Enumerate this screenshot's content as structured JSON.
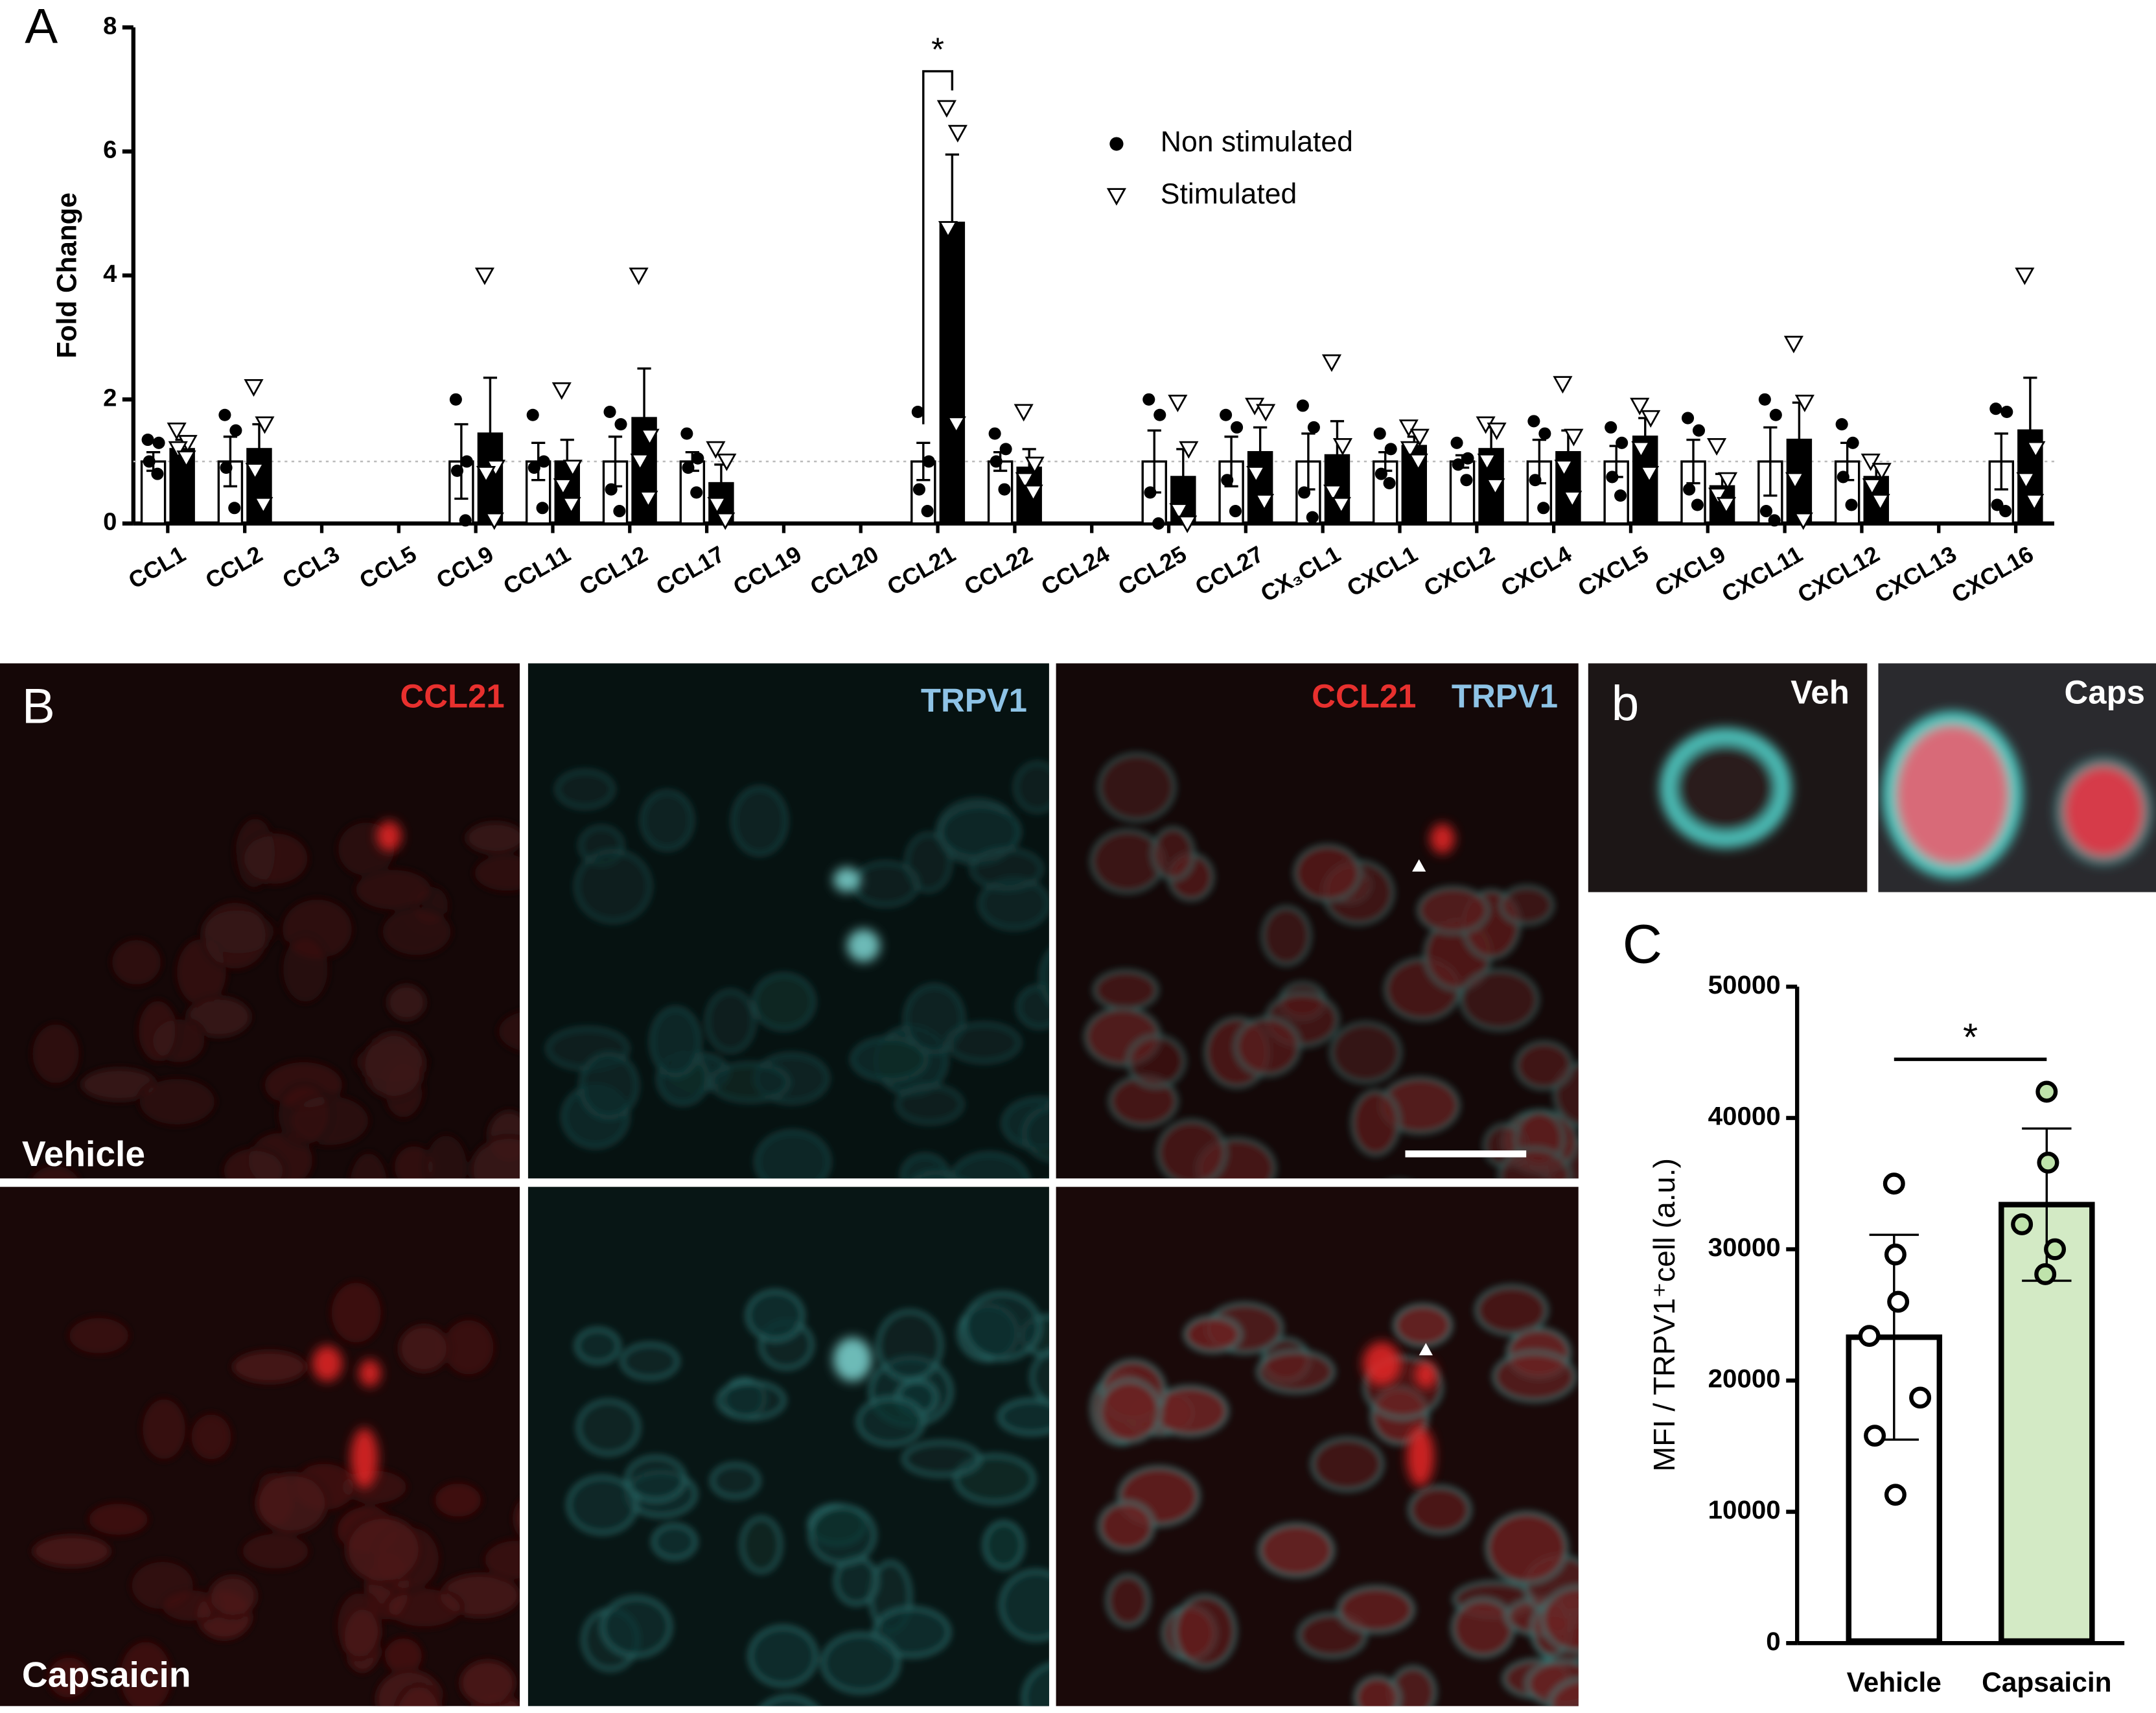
{
  "figure": {
    "panel_labels": {
      "a": "A",
      "b": "B",
      "b_inset": "b",
      "c": "C"
    },
    "image_labels": {
      "channel_red": "CCL21",
      "channel_cyan": "TRPV1",
      "merged_red": "CCL21",
      "merged_cyan": "TRPV1",
      "row_top": "Vehicle",
      "row_bottom": "Capsaicin",
      "inset_left": "Veh",
      "inset_right": "Caps"
    }
  },
  "chart_data": [
    {
      "type": "bar",
      "y_label": "Fold Change",
      "categories": [
        "CCL1",
        "CCL2",
        "CCL3",
        "CCL5",
        "CCL9",
        "CCL11",
        "CCL12",
        "CCL17",
        "CCL19",
        "CCL20",
        "CCL21",
        "CCL22",
        "CCL24",
        "CCL25",
        "CCL27",
        "CX₃CL1",
        "CXCL1",
        "CXCL2",
        "CXCL4",
        "CXCL5",
        "CXCL9",
        "CXCL11",
        "CXCL12",
        "CXCL13",
        "CXCL16"
      ],
      "ylim": [
        0,
        8
      ],
      "yticks": [
        0,
        2,
        4,
        6,
        8
      ],
      "reference_line": 1,
      "annotation": "*",
      "legend": "upper-center",
      "series": [
        {
          "name": "Non stimulated",
          "color": "#ffffff",
          "marker": "circle",
          "point_color": "#000000",
          "values": [
            1,
            1,
            null,
            null,
            1,
            1,
            1,
            1,
            null,
            null,
            1,
            1,
            null,
            1,
            1,
            1,
            1,
            1,
            1,
            1,
            1,
            1,
            1,
            null,
            1
          ],
          "errors": [
            0.15,
            0.4,
            null,
            null,
            0.6,
            0.3,
            0.4,
            0.15,
            null,
            null,
            0.3,
            0.15,
            null,
            0.5,
            0.4,
            0.45,
            0.15,
            0.1,
            0.35,
            0.25,
            0.35,
            0.55,
            0.3,
            null,
            0.45
          ],
          "points": [
            [
              1.35,
              1.3,
              1.0,
              0.8
            ],
            [
              1.75,
              1.5,
              0.9,
              0.25
            ],
            null,
            null,
            [
              2.0,
              1.0,
              0.85,
              0.05
            ],
            [
              1.75,
              1.0,
              0.9,
              0.25
            ],
            [
              1.8,
              1.6,
              0.55,
              0.2
            ],
            [
              1.45,
              1.05,
              0.9,
              0.5
            ],
            null,
            null,
            [
              1.8,
              1.0,
              0.55,
              0.2
            ],
            [
              1.45,
              1.2,
              1.0,
              0.55
            ],
            null,
            [
              2.0,
              1.75,
              0.5,
              0.0
            ],
            [
              1.75,
              1.55,
              0.7,
              0.2
            ],
            [
              1.9,
              1.55,
              0.5,
              0.1
            ],
            [
              1.45,
              1.2,
              0.8,
              0.65
            ],
            [
              1.3,
              1.05,
              0.95,
              0.7
            ],
            [
              1.65,
              1.45,
              0.7,
              0.25
            ],
            [
              1.55,
              1.3,
              0.75,
              0.45
            ],
            [
              1.7,
              1.5,
              0.55,
              0.3
            ],
            [
              2.0,
              1.75,
              0.2,
              0.05
            ],
            [
              1.6,
              1.3,
              0.75,
              0.3
            ],
            null,
            [
              1.85,
              1.8,
              0.3,
              0.2
            ]
          ]
        },
        {
          "name": "Stimulated",
          "color": "#000000",
          "marker": "triangle",
          "point_color": "#ffffff",
          "values": [
            1.2,
            1.2,
            null,
            null,
            1.45,
            1.0,
            1.7,
            0.65,
            null,
            null,
            4.85,
            0.9,
            null,
            0.75,
            1.15,
            1.1,
            1.25,
            1.2,
            1.15,
            1.4,
            0.6,
            1.35,
            0.75,
            null,
            1.5
          ],
          "errors": [
            0.15,
            0.4,
            null,
            null,
            0.9,
            0.35,
            0.8,
            0.3,
            null,
            null,
            1.1,
            0.3,
            null,
            0.45,
            0.4,
            0.55,
            0.15,
            0.35,
            0.35,
            0.3,
            0.2,
            0.6,
            0.2,
            null,
            0.85
          ],
          "points": [
            [
              1.5,
              1.3,
              1.2,
              1.05
            ],
            [
              2.2,
              1.6,
              0.85,
              0.3
            ],
            null,
            null,
            [
              4.0,
              0.9,
              0.8,
              0.05
            ],
            [
              2.15,
              0.9,
              0.6,
              0.3
            ],
            [
              4.0,
              1.4,
              1.0,
              0.4
            ],
            [
              1.2,
              1.0,
              0.3,
              0.05
            ],
            null,
            null,
            [
              6.7,
              6.3,
              4.75,
              1.6
            ],
            [
              1.8,
              0.95,
              0.7,
              0.5
            ],
            null,
            [
              1.95,
              1.2,
              0.2,
              0.0
            ],
            [
              1.9,
              1.8,
              0.8,
              0.35
            ],
            [
              2.6,
              1.25,
              0.5,
              0.3
            ],
            [
              1.55,
              1.4,
              1.2,
              1.0
            ],
            [
              1.6,
              1.5,
              1.0,
              0.6
            ],
            [
              2.25,
              1.4,
              0.9,
              0.4
            ],
            [
              1.9,
              1.7,
              1.2,
              0.8
            ],
            [
              1.25,
              0.7,
              0.45,
              0.3
            ],
            [
              2.9,
              1.95,
              0.7,
              0.05
            ],
            [
              1.0,
              0.85,
              0.6,
              0.35
            ],
            null,
            [
              4.0,
              1.2,
              0.7,
              0.35
            ]
          ]
        }
      ]
    },
    {
      "type": "bar",
      "y_label": "MFI / TRPV1⁺cell (a.u.)",
      "categories": [
        "Vehicle",
        "Capsaicin"
      ],
      "values": [
        23300,
        33400
      ],
      "errors": [
        7800,
        5800
      ],
      "colors": [
        "#ffffff",
        "#d3eac5"
      ],
      "point_colors": [
        "#ffffff",
        "#bfe3ab"
      ],
      "points": [
        [
          35000,
          29600,
          26000,
          23400,
          18700,
          15800,
          11300
        ],
        [
          42000,
          36600,
          31900,
          30000,
          28100
        ]
      ],
      "ylim": [
        0,
        50000
      ],
      "yticks": [
        0,
        10000,
        20000,
        30000,
        40000,
        50000
      ],
      "annotation": "*"
    }
  ]
}
